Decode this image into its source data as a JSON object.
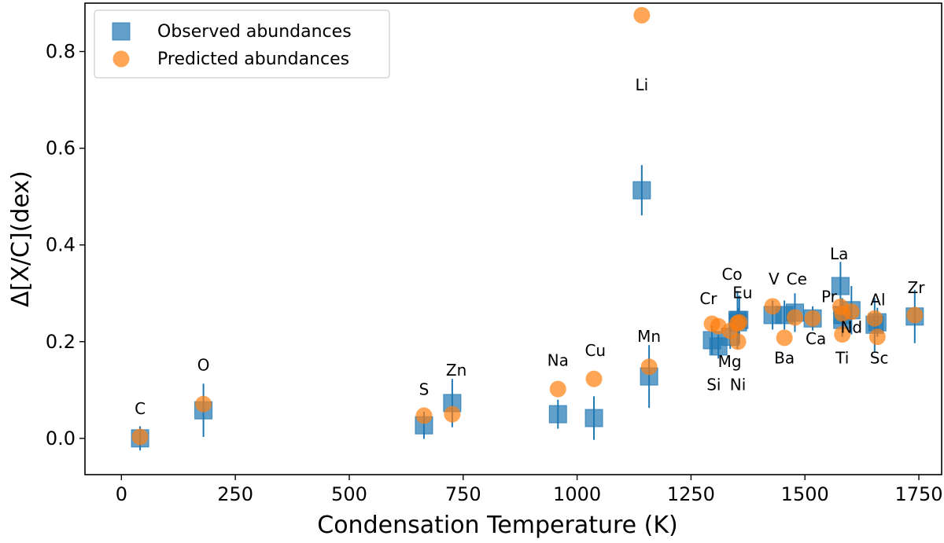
{
  "chart_data": {
    "type": "scatter",
    "title": "",
    "xlabel": "Condensation Temperature (K)",
    "ylabel": "Δ[X/C](dex)",
    "xlim": [
      -80,
      1800
    ],
    "ylim": [
      -0.075,
      0.9
    ],
    "x_ticks": [
      0,
      250,
      500,
      750,
      1000,
      1250,
      1500,
      1750
    ],
    "x_tick_labels": [
      "0",
      "250",
      "500",
      "750",
      "1000",
      "1250",
      "1500",
      "1750"
    ],
    "y_ticks": [
      0.0,
      0.2,
      0.4,
      0.6,
      0.8
    ],
    "y_tick_labels": [
      "0.0",
      "0.2",
      "0.4",
      "0.6",
      "0.8"
    ],
    "legend_position": "top-left",
    "colors": {
      "observed": "#1f77b4",
      "predicted": "#ff7f0e"
    },
    "series": [
      {
        "name": "Observed abundances",
        "marker": "square",
        "points": [
          {
            "element": "C",
            "x": 41,
            "y": 0.0,
            "err": 0.025
          },
          {
            "element": "O",
            "x": 180,
            "y": 0.058,
            "err": 0.055
          },
          {
            "element": "S",
            "x": 664,
            "y": 0.027,
            "err": 0.028
          },
          {
            "element": "Zn",
            "x": 726,
            "y": 0.073,
            "err": 0.05
          },
          {
            "element": "Na",
            "x": 958,
            "y": 0.05,
            "err": 0.03
          },
          {
            "element": "Cu",
            "x": 1037,
            "y": 0.042,
            "err": 0.045
          },
          {
            "element": "Li",
            "x": 1142,
            "y": 0.513,
            "err": 0.052
          },
          {
            "element": "Mn",
            "x": 1158,
            "y": 0.128,
            "err": 0.065
          },
          {
            "element": "Cr",
            "x": 1296,
            "y": 0.203,
            "err": 0.03
          },
          {
            "element": "Si",
            "x": 1310,
            "y": 0.19,
            "err": 0.025
          },
          {
            "element": "Mg",
            "x": 1336,
            "y": 0.21,
            "err": 0.025
          },
          {
            "element": "Co",
            "x": 1352,
            "y": 0.245,
            "err": 0.06
          },
          {
            "element": "Ni",
            "x": 1353,
            "y": 0.24,
            "err": 0.03
          },
          {
            "element": "Eu",
            "x": 1356,
            "y": 0.245,
            "err": 0.05
          },
          {
            "element": "V",
            "x": 1429,
            "y": 0.255,
            "err": 0.03
          },
          {
            "element": "Ba",
            "x": 1455,
            "y": 0.255,
            "err": 0.03
          },
          {
            "element": "Ce",
            "x": 1478,
            "y": 0.26,
            "err": 0.04
          },
          {
            "element": "Ca",
            "x": 1517,
            "y": 0.248,
            "err": 0.025
          },
          {
            "element": "La",
            "x": 1578,
            "y": 0.315,
            "err": 0.05
          },
          {
            "element": "Ti",
            "x": 1582,
            "y": 0.245,
            "err": 0.035
          },
          {
            "element": "Pr",
            "x": 1582,
            "y": 0.255,
            "err": 0.035
          },
          {
            "element": "Nd",
            "x": 1602,
            "y": 0.265,
            "err": 0.05
          },
          {
            "element": "Sc",
            "x": 1659,
            "y": 0.24,
            "err": 0.03
          },
          {
            "element": "Al",
            "x": 1653,
            "y": 0.235,
            "err": 0.055
          },
          {
            "element": "Zr",
            "x": 1741,
            "y": 0.252,
            "err": 0.055
          }
        ]
      },
      {
        "name": "Predicted abundances",
        "marker": "circle",
        "points": [
          {
            "element": "C",
            "x": 41,
            "y": 0.003
          },
          {
            "element": "O",
            "x": 180,
            "y": 0.071
          },
          {
            "element": "S",
            "x": 664,
            "y": 0.047
          },
          {
            "element": "Zn",
            "x": 726,
            "y": 0.05
          },
          {
            "element": "Na",
            "x": 958,
            "y": 0.102
          },
          {
            "element": "Cu",
            "x": 1037,
            "y": 0.123
          },
          {
            "element": "Li",
            "x": 1142,
            "y": 0.875
          },
          {
            "element": "Mn",
            "x": 1158,
            "y": 0.148
          },
          {
            "element": "Cr",
            "x": 1296,
            "y": 0.237
          },
          {
            "element": "Si",
            "x": 1310,
            "y": 0.232
          },
          {
            "element": "Mg",
            "x": 1336,
            "y": 0.222
          },
          {
            "element": "Co",
            "x": 1352,
            "y": 0.238
          },
          {
            "element": "Ni",
            "x": 1353,
            "y": 0.2
          },
          {
            "element": "Eu",
            "x": 1356,
            "y": 0.24
          },
          {
            "element": "V",
            "x": 1429,
            "y": 0.273
          },
          {
            "element": "Ba",
            "x": 1455,
            "y": 0.208
          },
          {
            "element": "Ce",
            "x": 1478,
            "y": 0.25
          },
          {
            "element": "Ca",
            "x": 1517,
            "y": 0.248
          },
          {
            "element": "La",
            "x": 1578,
            "y": 0.272
          },
          {
            "element": "Ti",
            "x": 1582,
            "y": 0.215
          },
          {
            "element": "Pr",
            "x": 1582,
            "y": 0.258
          },
          {
            "element": "Nd",
            "x": 1602,
            "y": 0.262
          },
          {
            "element": "Sc",
            "x": 1659,
            "y": 0.21
          },
          {
            "element": "Al",
            "x": 1653,
            "y": 0.248
          },
          {
            "element": "Zr",
            "x": 1741,
            "y": 0.255
          }
        ]
      }
    ],
    "element_labels": [
      {
        "text": "C",
        "x": 41,
        "y": 0.05
      },
      {
        "text": "O",
        "x": 180,
        "y": 0.14
      },
      {
        "text": "S",
        "x": 664,
        "y": 0.09
      },
      {
        "text": "Zn",
        "x": 735,
        "y": 0.13
      },
      {
        "text": "Na",
        "x": 958,
        "y": 0.15
      },
      {
        "text": "Cu",
        "x": 1040,
        "y": 0.17
      },
      {
        "text": "Li",
        "x": 1142,
        "y": 0.72
      },
      {
        "text": "Mn",
        "x": 1158,
        "y": 0.2
      },
      {
        "text": "Cr",
        "x": 1288,
        "y": 0.278
      },
      {
        "text": "Si",
        "x": 1300,
        "y": 0.1
      },
      {
        "text": "Mg",
        "x": 1335,
        "y": 0.148
      },
      {
        "text": "Co",
        "x": 1340,
        "y": 0.328
      },
      {
        "text": "Ni",
        "x": 1353,
        "y": 0.1
      },
      {
        "text": "Eu",
        "x": 1363,
        "y": 0.29
      },
      {
        "text": "V",
        "x": 1432,
        "y": 0.318
      },
      {
        "text": "Ba",
        "x": 1455,
        "y": 0.155
      },
      {
        "text": "Ce",
        "x": 1482,
        "y": 0.318
      },
      {
        "text": "Ca",
        "x": 1524,
        "y": 0.195
      },
      {
        "text": "La",
        "x": 1575,
        "y": 0.37
      },
      {
        "text": "Ti",
        "x": 1582,
        "y": 0.155
      },
      {
        "text": "Pr",
        "x": 1553,
        "y": 0.282
      },
      {
        "text": "Nd",
        "x": 1602,
        "y": 0.218
      },
      {
        "text": "Sc",
        "x": 1663,
        "y": 0.155
      },
      {
        "text": "Al",
        "x": 1660,
        "y": 0.275
      },
      {
        "text": "Zr",
        "x": 1744,
        "y": 0.3
      }
    ]
  }
}
